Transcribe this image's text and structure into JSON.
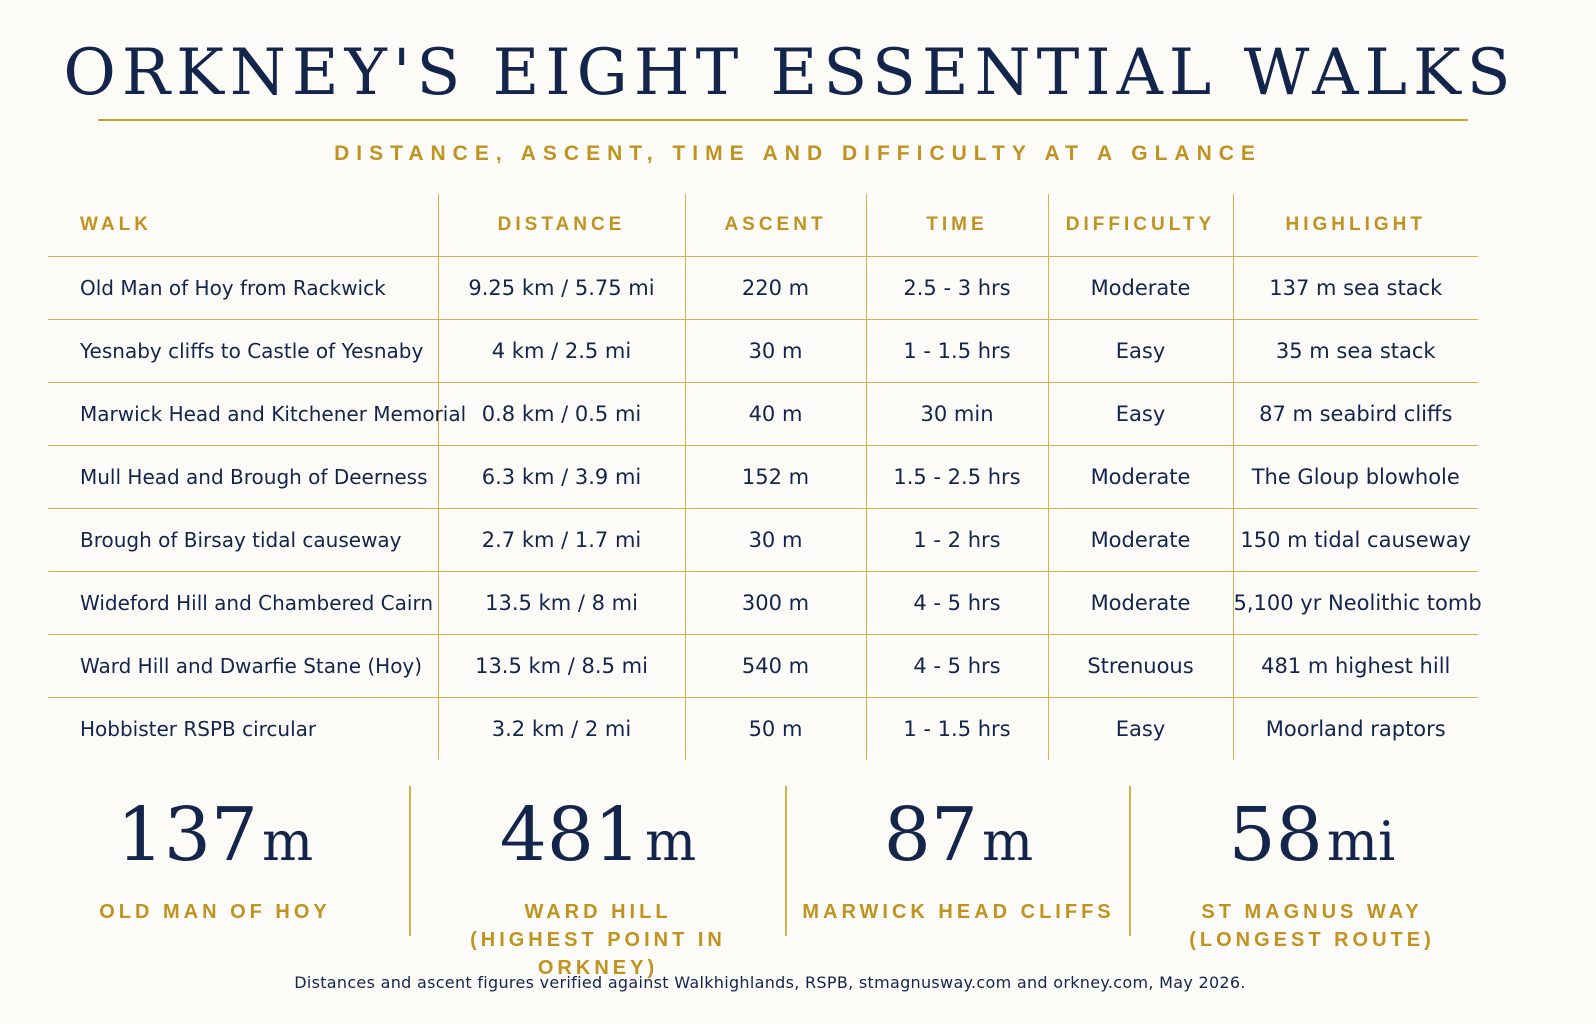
{
  "title": "ORKNEY'S EIGHT ESSENTIAL WALKS",
  "subtitle": "DISTANCE, ASCENT, TIME AND DIFFICULTY AT A GLANCE",
  "colors": {
    "navy": "#13254a",
    "gold": "#c09320",
    "rule": "#d4b049",
    "background": "#fcfbf8"
  },
  "table": {
    "headers": [
      "WALK",
      "DISTANCE",
      "ASCENT",
      "TIME",
      "DIFFICULTY",
      "HIGHLIGHT"
    ],
    "rows": [
      [
        "Old Man of Hoy from Rackwick",
        "9.25 km / 5.75 mi",
        "220 m",
        "2.5 - 3 hrs",
        "Moderate",
        "137 m sea stack"
      ],
      [
        "Yesnaby cliffs to Castle of Yesnaby",
        "4 km / 2.5 mi",
        "30 m",
        "1 - 1.5 hrs",
        "Easy",
        "35 m sea stack"
      ],
      [
        "Marwick Head and Kitchener Memorial",
        "0.8 km / 0.5 mi",
        "40 m",
        "30 min",
        "Easy",
        "87 m seabird cliffs"
      ],
      [
        "Mull Head and Brough of Deerness",
        "6.3 km / 3.9 mi",
        "152 m",
        "1.5 - 2.5 hrs",
        "Moderate",
        "The Gloup blowhole"
      ],
      [
        "Brough of Birsay tidal causeway",
        "2.7 km / 1.7 mi",
        "30 m",
        "1 - 2 hrs",
        "Moderate",
        "150 m tidal causeway"
      ],
      [
        "Wideford Hill and Chambered Cairn",
        "13.5 km / 8 mi",
        "300 m",
        "4 - 5 hrs",
        "Moderate",
        "5,100 yr Neolithic tomb"
      ],
      [
        "Ward Hill and Dwarfie Stane (Hoy)",
        "13.5 km / 8.5 mi",
        "540 m",
        "4 - 5 hrs",
        "Strenuous",
        "481 m highest hill"
      ],
      [
        "Hobbister RSPB circular",
        "3.2 km / 2 mi",
        "50 m",
        "1 - 1.5 hrs",
        "Easy",
        "Moorland raptors"
      ]
    ]
  },
  "stats": [
    {
      "number": "137",
      "unit": "m",
      "label1": "OLD MAN OF HOY",
      "label2": ""
    },
    {
      "number": "481",
      "unit": "m",
      "label1": "WARD HILL",
      "label2": "(HIGHEST POINT IN ORKNEY)"
    },
    {
      "number": "87",
      "unit": "m",
      "label1": "MARWICK HEAD CLIFFS",
      "label2": ""
    },
    {
      "number": "58",
      "unit": "mi",
      "label1": "ST MAGNUS WAY",
      "label2": "(LONGEST ROUTE)"
    }
  ],
  "footnote": "Distances and ascent figures verified against Walkhighlands, RSPB, stmagnusway.com and orkney.com, May 2026."
}
